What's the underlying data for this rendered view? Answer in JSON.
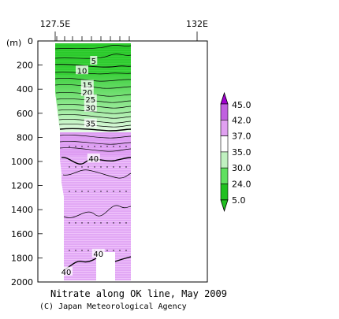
{
  "chart_data": {
    "type": "heatmap",
    "title": "Nitrate along OK line, May 2009",
    "credit": "(C) Japan Meteorological Agency",
    "ylabel": "(m)",
    "x_ticks": [
      "127.5E",
      "132E"
    ],
    "y_ticks": [
      0,
      200,
      400,
      600,
      800,
      1000,
      1200,
      1400,
      1600,
      1800,
      2000
    ],
    "ylim": [
      2000,
      0
    ],
    "contour_labels": [
      {
        "text": "5",
        "lon": 128.72,
        "depth": 170
      },
      {
        "text": "10",
        "lon": 128.35,
        "depth": 250
      },
      {
        "text": "15",
        "lon": 128.52,
        "depth": 370
      },
      {
        "text": "20",
        "lon": 128.52,
        "depth": 430
      },
      {
        "text": "25",
        "lon": 128.62,
        "depth": 490
      },
      {
        "text": "30",
        "lon": 128.62,
        "depth": 560
      },
      {
        "text": "35",
        "lon": 128.62,
        "depth": 690
      },
      {
        "text": "40",
        "lon": 128.72,
        "depth": 980
      },
      {
        "text": "40",
        "lon": 128.87,
        "depth": 1770
      },
      {
        "text": "40",
        "lon": 127.85,
        "depth": 1920
      }
    ],
    "legend": {
      "placement": "right",
      "levels": [
        "45.0",
        "42.0",
        "37.0",
        "35.0",
        "30.0",
        "24.0",
        "5.0"
      ],
      "colors": [
        "#a000d0",
        "#c060e0",
        "#e0a0f0",
        "#ffffff",
        "#c0f0c0",
        "#60e060",
        "#20c020"
      ]
    }
  }
}
